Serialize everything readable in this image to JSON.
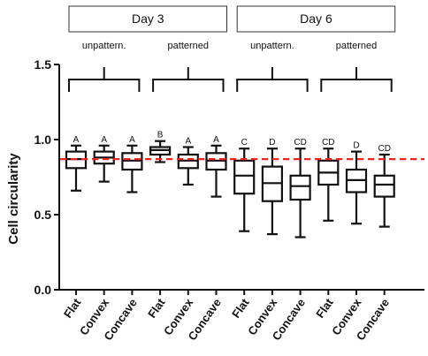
{
  "chart_data": {
    "type": "box",
    "ylabel": "Cell circularity",
    "ylim": [
      0.0,
      1.5
    ],
    "yticks": [
      "0.0",
      "0.5",
      "1.0",
      "1.5"
    ],
    "reference_line": {
      "value": 0.87,
      "style": "dashed",
      "color": "#e8251f"
    },
    "day_groups": [
      {
        "label": "Day 3",
        "subgroups": [
          {
            "label": "unpattern.",
            "start": 0,
            "end": 2
          },
          {
            "label": "patterned",
            "start": 3,
            "end": 5
          }
        ]
      },
      {
        "label": "Day 6",
        "subgroups": [
          {
            "label": "unpattern.",
            "start": 6,
            "end": 8
          },
          {
            "label": "patterned",
            "start": 9,
            "end": 11
          }
        ]
      }
    ],
    "categories": [
      "Flat",
      "Convex",
      "Concave",
      "Flat",
      "Convex",
      "Concave",
      "Flat",
      "Convex",
      "Concave",
      "Flat",
      "Convex",
      "Concave"
    ],
    "letters": [
      "A",
      "A",
      "A",
      "B",
      "A",
      "A",
      "C",
      "D",
      "CD",
      "CD",
      "D",
      "CD"
    ],
    "boxes": [
      {
        "min": 0.66,
        "q1": 0.81,
        "median": 0.87,
        "q3": 0.92,
        "max": 0.96
      },
      {
        "min": 0.72,
        "q1": 0.84,
        "median": 0.88,
        "q3": 0.92,
        "max": 0.96
      },
      {
        "min": 0.65,
        "q1": 0.8,
        "median": 0.86,
        "q3": 0.91,
        "max": 0.96
      },
      {
        "min": 0.85,
        "q1": 0.9,
        "median": 0.93,
        "q3": 0.95,
        "max": 0.99
      },
      {
        "min": 0.7,
        "q1": 0.81,
        "median": 0.86,
        "q3": 0.9,
        "max": 0.95
      },
      {
        "min": 0.62,
        "q1": 0.8,
        "median": 0.86,
        "q3": 0.91,
        "max": 0.96
      },
      {
        "min": 0.39,
        "q1": 0.64,
        "median": 0.76,
        "q3": 0.86,
        "max": 0.94
      },
      {
        "min": 0.37,
        "q1": 0.59,
        "median": 0.71,
        "q3": 0.82,
        "max": 0.94
      },
      {
        "min": 0.35,
        "q1": 0.6,
        "median": 0.69,
        "q3": 0.76,
        "max": 0.94
      },
      {
        "min": 0.46,
        "q1": 0.7,
        "median": 0.78,
        "q3": 0.86,
        "max": 0.94
      },
      {
        "min": 0.44,
        "q1": 0.65,
        "median": 0.73,
        "q3": 0.8,
        "max": 0.92
      },
      {
        "min": 0.42,
        "q1": 0.62,
        "median": 0.7,
        "q3": 0.76,
        "max": 0.9
      }
    ]
  }
}
